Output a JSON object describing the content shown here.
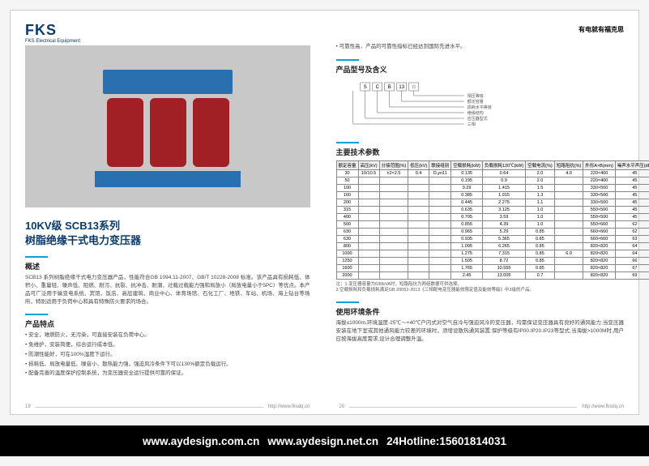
{
  "brand": {
    "logo": "FKS",
    "sub": "FKS Electrical Equipment"
  },
  "tagline": "有电就有福克思",
  "left": {
    "title1": "10KV级 SCB13系列",
    "title2": "树脂绝缘干式电力变压器",
    "overview_h": "概述",
    "overview": "SCB13 系列树脂绝缘干式电力变压器产品，性能符合GB 1094.11-2007、GB/T 10228-2008 标准。该产品具有损耗低、体积小、重量轻、噪声低、阻燃、耐污、抗裂、抗冲击、耐潮、过载过载能力强和局放小（局放电量小于5PC）等优点。本产品可广泛用于输变电系统、宾馆、饭店、高层建筑、商业中心、体育场馆、石化工厂、地铁、车站、机场、海上钻台等场所，特别适用于负荷中心和具有特殊防火要求的场合。",
    "features_h": "产品特点",
    "features": [
      "安全，难燃防火，无污染，可直接安装在负荷中心。",
      "免维护，安装简便，综合运行成本低。",
      "防潮性能好，可在100%湿度下运行。",
      "损耗低、局放电量低、噪音小、散热能力强，强迫风冷条件下可以130%额定负载运行。",
      "配备完善的温度保护控制系统，为变压器安全运行提供可靠的保证。"
    ],
    "page": "19",
    "url": "http://www.fksdq.cn"
  },
  "right": {
    "bullet": "可靠性高，产品的可靠性指标已经达到国际先进水平。",
    "model_h": "产品型号及含义",
    "diagram_boxes": [
      "S",
      "C",
      "B",
      "13",
      "□"
    ],
    "diagram_labels": [
      "相压等级",
      "额定容量",
      "损耗水平等级",
      "绝缘结构",
      "应压器型式",
      "三相"
    ],
    "params_h": "主要技术参数",
    "table": {
      "headers": [
        "额定容量",
        "高压(kV)",
        "分接范围(%)",
        "低压(kV)",
        "联接组别",
        "空载损耗(kW)",
        "负载损耗120℃(kW)",
        "空载电流(%)",
        "短路阻抗(%)",
        "外形A×B(mm)",
        "噪声水平声压(dB)"
      ],
      "rows": [
        [
          "30",
          "10/10.5",
          "±2×2.5",
          "0.4",
          "D,yn11",
          "0.135",
          "0.64",
          "2.0",
          "4.0",
          "220×400",
          "45"
        ],
        [
          "50",
          "",
          "",
          "",
          "",
          "0.195",
          "0.9",
          "2.0",
          "",
          "220×400",
          "45"
        ],
        [
          "100",
          "",
          "",
          "",
          "",
          "0.29",
          "1.415",
          "1.5",
          "",
          "330×500",
          "45"
        ],
        [
          "160",
          "",
          "",
          "",
          "",
          "0.385",
          "1.915",
          "1.3",
          "",
          "330×500",
          "45"
        ],
        [
          "200",
          "",
          "",
          "",
          "",
          "0.445",
          "2.275",
          "1.1",
          "",
          "330×500",
          "45"
        ],
        [
          "315",
          "",
          "",
          "",
          "",
          "0.635",
          "3.125",
          "1.0",
          "",
          "550×500",
          "45"
        ],
        [
          "400",
          "",
          "",
          "",
          "",
          "0.705",
          "3.59",
          "1.0",
          "",
          "550×500",
          "45"
        ],
        [
          "500",
          "",
          "",
          "",
          "",
          "0.855",
          "4.39",
          "1.0",
          "",
          "550×660",
          "62"
        ],
        [
          "630",
          "",
          "",
          "",
          "",
          "0.965",
          "5.29",
          "0.85",
          "",
          "660×660",
          "62"
        ],
        [
          "630",
          "",
          "",
          "",
          "",
          "0.935",
          "5.365",
          "0.85",
          "",
          "660×660",
          "63"
        ],
        [
          "800",
          "",
          "",
          "",
          "",
          "1.095",
          "6.265",
          "0.85",
          "",
          "820×820",
          "64"
        ],
        [
          "1000",
          "",
          "",
          "",
          "",
          "1.275",
          "7.315",
          "0.85",
          "6.0",
          "820×820",
          "64"
        ],
        [
          "1250",
          "",
          "",
          "",
          "",
          "1.505",
          "8.72",
          "0.85",
          "",
          "820×820",
          "66"
        ],
        [
          "1600",
          "",
          "",
          "",
          "",
          "1.765",
          "10.555",
          "0.85",
          "",
          "820×820",
          "67"
        ],
        [
          "2000",
          "",
          "",
          "",
          "",
          "2.45",
          "13.005",
          "0.7",
          "",
          "820×820",
          "69"
        ]
      ]
    },
    "notes": [
      "注：1.变压器容量为630kVA时，短路阻抗为两组数据可供选择。",
      "2.空载损耗和负载损耗满足GB 20052-2013《三相配电变压器能效限定值及能效等级》中3级的产品。"
    ],
    "usage_h": "使用环境条件",
    "usage": "海拔≤1000m,环境温度-25℃～+40℃户内式对空气自冷与强迫风冷的变压器，均需保证变压器具有良好的通风能力;当变压器安装在地下室或其他通风能力较差的环境时，须增设散热通风装置;保护等级有IP00.IP20.IP23等型式;当海拔>1000M时,用户应按海拔高度需求,设计合理调整升温。",
    "page": "20",
    "url": "http://www.fksdq.cn"
  },
  "blackbar": {
    "u1": "www.aydesign.com.cn",
    "u2": "www.aydesign.net.cn",
    "hot": "24Hotline:15601814031"
  },
  "colors": {
    "brand": "#0a3a6b",
    "accent": "#0aa0d8",
    "coil": "#a02025",
    "frame": "#2a6fb0"
  }
}
